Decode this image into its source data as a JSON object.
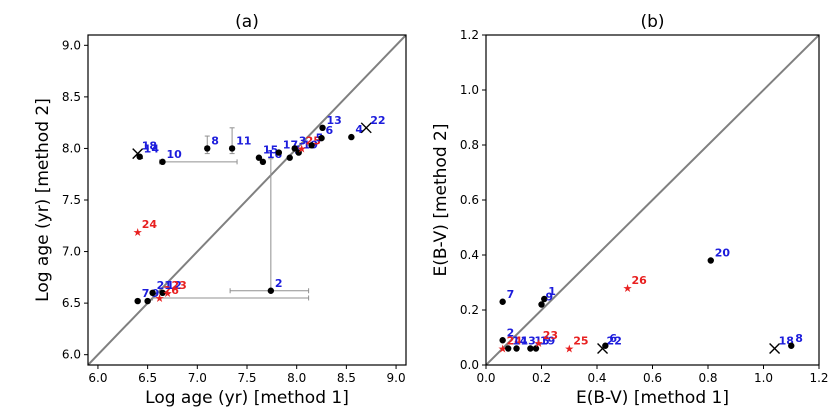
{
  "chart_data": [
    {
      "type": "scatter",
      "title": "(a)",
      "xlabel": "Log age (yr) [method 1]",
      "ylabel": "Log age (yr) [method 2]",
      "xlim": [
        5.9,
        9.1
      ],
      "ylim": [
        5.9,
        9.1
      ],
      "xticks": [
        "6.0",
        "6.5",
        "7.0",
        "7.5",
        "8.0",
        "8.5",
        "9.0"
      ],
      "yticks": [
        "6.0",
        "6.5",
        "7.0",
        "7.5",
        "8.0",
        "8.5",
        "9.0"
      ],
      "identity_line": true,
      "points": [
        {
          "x": 6.4,
          "y": 7.95,
          "label": "18",
          "color": "blue",
          "marker": "x"
        },
        {
          "x": 6.42,
          "y": 7.92,
          "label": "14",
          "color": "blue",
          "marker": "o"
        },
        {
          "x": 6.65,
          "y": 7.87,
          "label": "10",
          "color": "blue",
          "marker": "o",
          "xerr": [
            6.62,
            7.4
          ]
        },
        {
          "x": 7.1,
          "y": 8.0,
          "label": "8",
          "color": "blue",
          "marker": "o",
          "yerr": [
            7.95,
            8.12
          ]
        },
        {
          "x": 7.35,
          "y": 8.0,
          "label": "11",
          "color": "blue",
          "marker": "o",
          "yerr": [
            7.95,
            8.2
          ]
        },
        {
          "x": 7.62,
          "y": 7.91,
          "label": "15",
          "color": "blue",
          "marker": "o"
        },
        {
          "x": 7.66,
          "y": 7.87,
          "label": "16",
          "color": "blue",
          "marker": "o"
        },
        {
          "x": 7.82,
          "y": 7.96,
          "label": "17",
          "color": "blue",
          "marker": "o"
        },
        {
          "x": 7.93,
          "y": 7.91,
          "label": "1",
          "color": "blue",
          "marker": "o"
        },
        {
          "x": 7.98,
          "y": 8.0,
          "label": "3",
          "color": "blue",
          "marker": "o"
        },
        {
          "x": 8.02,
          "y": 7.96,
          "label": "19",
          "color": "blue",
          "marker": "o"
        },
        {
          "x": 8.05,
          "y": 8.0,
          "label": "25",
          "color": "red",
          "marker": "*"
        },
        {
          "x": 8.15,
          "y": 8.03,
          "label": "5",
          "color": "blue",
          "marker": "o"
        },
        {
          "x": 8.25,
          "y": 8.1,
          "label": "6",
          "color": "blue",
          "marker": "o"
        },
        {
          "x": 8.26,
          "y": 8.2,
          "label": "13",
          "color": "blue",
          "marker": "o"
        },
        {
          "x": 8.55,
          "y": 8.11,
          "label": "4",
          "color": "blue",
          "marker": "o"
        },
        {
          "x": 8.7,
          "y": 8.2,
          "label": "22",
          "color": "blue",
          "marker": "x"
        },
        {
          "x": 6.4,
          "y": 7.19,
          "label": "24",
          "color": "red",
          "marker": "*"
        },
        {
          "x": 7.74,
          "y": 6.62,
          "label": "2",
          "color": "blue",
          "marker": "o",
          "xerr": [
            7.33,
            8.12
          ],
          "yerr": [
            6.62,
            7.9
          ]
        },
        {
          "x": 6.4,
          "y": 6.52,
          "label": "7",
          "color": "blue",
          "marker": "o"
        },
        {
          "x": 6.5,
          "y": 6.52,
          "label": "9",
          "color": "blue",
          "marker": "o"
        },
        {
          "x": 6.55,
          "y": 6.6,
          "label": "21",
          "color": "blue",
          "marker": "o"
        },
        {
          "x": 6.62,
          "y": 6.55,
          "label": "26",
          "color": "red",
          "marker": "*",
          "xerr": [
            6.55,
            8.12
          ]
        },
        {
          "x": 6.65,
          "y": 6.6,
          "label": "12",
          "color": "blue",
          "marker": "o"
        },
        {
          "x": 6.7,
          "y": 6.6,
          "label": "23",
          "color": "red",
          "marker": "*"
        }
      ]
    },
    {
      "type": "scatter",
      "title": "(b)",
      "xlabel": "E(B-V) [method 1]",
      "ylabel": "E(B-V) [method 2]",
      "xlim": [
        0.0,
        1.2
      ],
      "ylim": [
        0.0,
        1.2
      ],
      "xticks": [
        "0.0",
        "0.2",
        "0.4",
        "0.6",
        "0.8",
        "1.0",
        "1.2"
      ],
      "yticks": [
        "0.0",
        "0.2",
        "0.4",
        "0.6",
        "0.8",
        "1.0",
        "1.2"
      ],
      "identity_line": true,
      "points": [
        {
          "x": 0.06,
          "y": 0.23,
          "label": "7",
          "color": "blue",
          "marker": "o"
        },
        {
          "x": 0.21,
          "y": 0.24,
          "label": "1",
          "color": "blue",
          "marker": "o"
        },
        {
          "x": 0.2,
          "y": 0.22,
          "label": "9",
          "color": "blue",
          "marker": "o"
        },
        {
          "x": 0.06,
          "y": 0.09,
          "label": "2",
          "color": "blue",
          "marker": "o"
        },
        {
          "x": 0.06,
          "y": 0.06,
          "label": "24",
          "color": "red",
          "marker": "*"
        },
        {
          "x": 0.08,
          "y": 0.06,
          "label": "14",
          "color": "blue",
          "marker": "o"
        },
        {
          "x": 0.11,
          "y": 0.06,
          "label": "13",
          "color": "blue",
          "marker": "o"
        },
        {
          "x": 0.16,
          "y": 0.06,
          "label": "15",
          "color": "blue",
          "marker": "o"
        },
        {
          "x": 0.18,
          "y": 0.06,
          "label": "19",
          "color": "blue",
          "marker": "o"
        },
        {
          "x": 0.19,
          "y": 0.08,
          "label": "23",
          "color": "red",
          "marker": "*"
        },
        {
          "x": 0.3,
          "y": 0.06,
          "label": "25",
          "color": "red",
          "marker": "*"
        },
        {
          "x": 0.42,
          "y": 0.06,
          "label": "22",
          "color": "blue",
          "marker": "x"
        },
        {
          "x": 0.43,
          "y": 0.07,
          "label": "6",
          "color": "blue",
          "marker": "o"
        },
        {
          "x": 0.51,
          "y": 0.28,
          "label": "26",
          "color": "red",
          "marker": "*"
        },
        {
          "x": 0.81,
          "y": 0.38,
          "label": "20",
          "color": "blue",
          "marker": "o"
        },
        {
          "x": 1.04,
          "y": 0.06,
          "label": "18",
          "color": "blue",
          "marker": "x"
        },
        {
          "x": 1.1,
          "y": 0.07,
          "label": "8",
          "color": "blue",
          "marker": "o"
        }
      ]
    }
  ]
}
